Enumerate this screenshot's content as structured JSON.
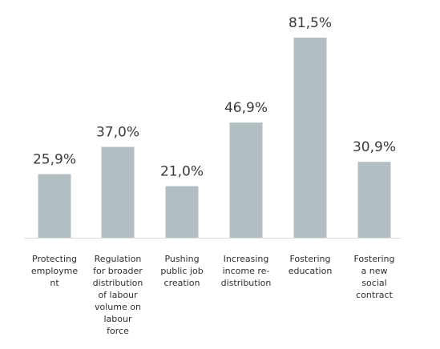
{
  "chart_data": {
    "type": "bar",
    "title": "",
    "xlabel": "",
    "ylabel": "",
    "ylim": [
      0,
      81.5
    ],
    "grid": false,
    "legend": "none",
    "bar_color": "#b1bfc3",
    "baseline_color": "#d4dcde",
    "categories": [
      [
        "Protecting",
        "employme",
        "nt"
      ],
      [
        "Regulation",
        "for broader",
        "distribution",
        "of labour",
        "volume on",
        "labour",
        "force"
      ],
      [
        "Pushing",
        "public job",
        "creation"
      ],
      [
        "Increasing",
        "income re-",
        "distribution"
      ],
      [
        "Fostering",
        "education"
      ],
      [
        "Fostering",
        "a new",
        "social",
        "contract"
      ]
    ],
    "values": [
      25.9,
      37.0,
      21.0,
      46.9,
      81.5,
      30.9
    ],
    "value_labels": [
      "25,9%",
      "37,0%",
      "21,0%",
      "46,9%",
      "81,5%",
      "30,9%"
    ]
  }
}
